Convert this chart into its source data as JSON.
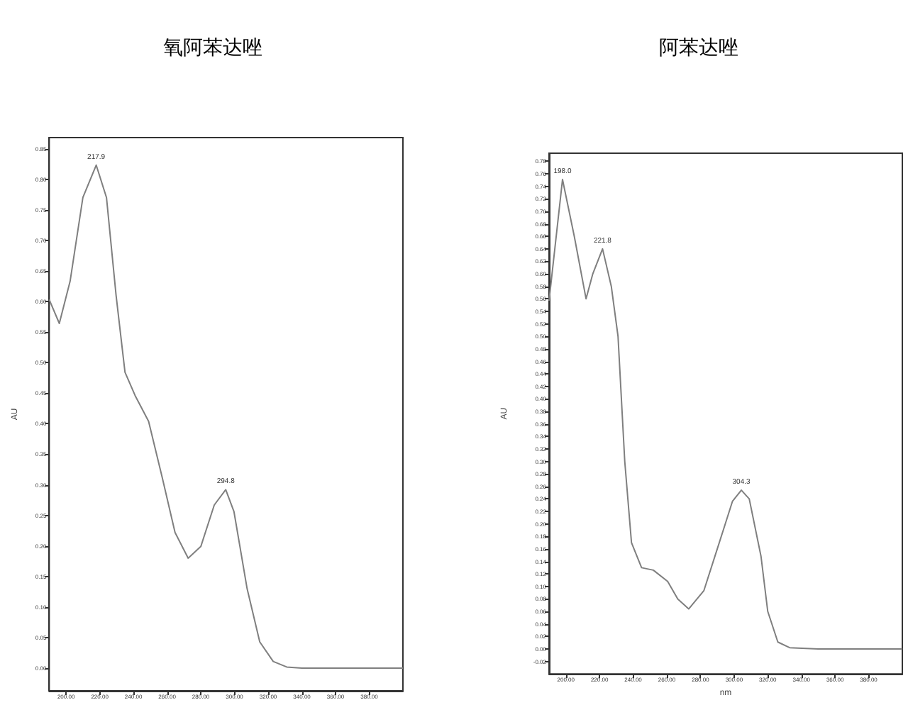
{
  "chart_data": [
    {
      "type": "line",
      "title": "氧阿苯达唑",
      "ylabel": "AU",
      "grid": false,
      "marker": "none",
      "line_style": "solid",
      "xlim": [
        190,
        400
      ],
      "ylim": [
        -0.037,
        0.868
      ],
      "xticks": [
        {
          "value": 200,
          "label": "200.00"
        },
        {
          "value": 220,
          "label": "220.00"
        },
        {
          "value": 240,
          "label": "240.00"
        },
        {
          "value": 260,
          "label": "260.00"
        },
        {
          "value": 280,
          "label": "280.00"
        },
        {
          "value": 300,
          "label": "300.00"
        },
        {
          "value": 320,
          "label": "320.00"
        },
        {
          "value": 340,
          "label": "340.00"
        },
        {
          "value": 360,
          "label": "360.00"
        },
        {
          "value": 380,
          "label": "380.00"
        }
      ],
      "yticks": [
        {
          "value": 0,
          "label": "0.00"
        },
        {
          "value": 0.05,
          "label": "0.05"
        },
        {
          "value": 0.1,
          "label": "0.10"
        },
        {
          "value": 0.15,
          "label": "0.15"
        },
        {
          "value": 0.2,
          "label": "0.20"
        },
        {
          "value": 0.25,
          "label": "0.25"
        },
        {
          "value": 0.3,
          "label": "0.30"
        },
        {
          "value": 0.35,
          "label": "0.35"
        },
        {
          "value": 0.4,
          "label": "0.40"
        },
        {
          "value": 0.45,
          "label": "0.45"
        },
        {
          "value": 0.5,
          "label": "0.50"
        },
        {
          "value": 0.55,
          "label": "0.55"
        },
        {
          "value": 0.6,
          "label": "0.60"
        },
        {
          "value": 0.65,
          "label": "0.65"
        },
        {
          "value": 0.7,
          "label": "0.70"
        },
        {
          "value": 0.75,
          "label": "0.75"
        },
        {
          "value": 0.8,
          "label": "0.80"
        },
        {
          "value": 0.85,
          "label": "0.85"
        }
      ],
      "x": [
        190,
        196,
        202.4,
        210,
        217.9,
        224,
        229.7,
        235,
        241,
        249,
        257,
        264.7,
        272.5,
        280,
        288,
        294.8,
        299.7,
        307.5,
        315,
        323,
        331,
        340,
        370,
        400
      ],
      "series": [
        {
          "color": "#7f7f7f",
          "values": [
            0.603,
            0.564,
            0.633,
            0.77,
            0.823,
            0.77,
            0.61,
            0.484,
            0.446,
            0.404,
            0.313,
            0.222,
            0.18,
            0.199,
            0.267,
            0.292,
            0.256,
            0.13,
            0.043,
            0.011,
            0.002,
            0,
            0,
            0
          ]
        }
      ],
      "annotations": [
        {
          "text": "217.9",
          "x": 217.9,
          "y": 0.823
        },
        {
          "text": "294.8",
          "x": 294.8,
          "y": 0.292
        }
      ]
    },
    {
      "type": "line",
      "title": "阿苯达唑",
      "xlabel": "nm",
      "ylabel": "AU",
      "grid": false,
      "marker": "none",
      "line_style": "solid",
      "xlim": [
        190,
        400
      ],
      "ylim": [
        -0.04,
        0.793
      ],
      "xticks": [
        {
          "value": 200,
          "label": "200.00"
        },
        {
          "value": 220,
          "label": "220.00"
        },
        {
          "value": 240,
          "label": "240.00"
        },
        {
          "value": 260,
          "label": "260.00"
        },
        {
          "value": 280,
          "label": "280.00"
        },
        {
          "value": 300,
          "label": "300.00"
        },
        {
          "value": 320,
          "label": "320.00"
        },
        {
          "value": 340,
          "label": "340.00"
        },
        {
          "value": 360,
          "label": "360.00"
        },
        {
          "value": 380,
          "label": "380.00"
        }
      ],
      "yticks": [
        {
          "value": -0.02,
          "label": "-0.02"
        },
        {
          "value": 0,
          "label": "0.00"
        },
        {
          "value": 0.02,
          "label": "0.02"
        },
        {
          "value": 0.04,
          "label": "0.04"
        },
        {
          "value": 0.06,
          "label": "0.06"
        },
        {
          "value": 0.08,
          "label": "0.08"
        },
        {
          "value": 0.1,
          "label": "0.10"
        },
        {
          "value": 0.12,
          "label": "0.12"
        },
        {
          "value": 0.14,
          "label": "0.14"
        },
        {
          "value": 0.16,
          "label": "0.16"
        },
        {
          "value": 0.18,
          "label": "0.18"
        },
        {
          "value": 0.2,
          "label": "0.20"
        },
        {
          "value": 0.22,
          "label": "0.22"
        },
        {
          "value": 0.24,
          "label": "0.24"
        },
        {
          "value": 0.26,
          "label": "0.26"
        },
        {
          "value": 0.28,
          "label": "0.28"
        },
        {
          "value": 0.3,
          "label": "0.30"
        },
        {
          "value": 0.32,
          "label": "0.32"
        },
        {
          "value": 0.34,
          "label": "0.34"
        },
        {
          "value": 0.36,
          "label": "0.36"
        },
        {
          "value": 0.38,
          "label": "0.38"
        },
        {
          "value": 0.4,
          "label": "0.40"
        },
        {
          "value": 0.42,
          "label": "0.42"
        },
        {
          "value": 0.44,
          "label": "0.44"
        },
        {
          "value": 0.46,
          "label": "0.46"
        },
        {
          "value": 0.48,
          "label": "0.48"
        },
        {
          "value": 0.5,
          "label": "0.50"
        },
        {
          "value": 0.52,
          "label": "0.52"
        },
        {
          "value": 0.54,
          "label": "0.54"
        },
        {
          "value": 0.56,
          "label": "0.56"
        },
        {
          "value": 0.58,
          "label": "0.58"
        },
        {
          "value": 0.6,
          "label": "0.60"
        },
        {
          "value": 0.62,
          "label": "0.62"
        },
        {
          "value": 0.64,
          "label": "0.64"
        },
        {
          "value": 0.66,
          "label": "0.66"
        },
        {
          "value": 0.68,
          "label": "0.68"
        },
        {
          "value": 0.7,
          "label": "0.70"
        },
        {
          "value": 0.72,
          "label": "0.72"
        },
        {
          "value": 0.74,
          "label": "0.74"
        },
        {
          "value": 0.76,
          "label": "0.76"
        },
        {
          "value": 0.78,
          "label": "0.78"
        }
      ],
      "x": [
        190,
        198,
        205,
        212,
        216,
        221.8,
        227,
        231,
        235,
        239,
        245,
        252,
        260.5,
        266.5,
        273,
        282,
        290,
        299,
        304.3,
        309,
        316,
        320,
        326,
        333,
        350,
        400
      ],
      "series": [
        {
          "color": "#7f7f7f",
          "values": [
            0.557,
            0.751,
            0.66,
            0.56,
            0.6,
            0.64,
            0.58,
            0.5,
            0.3,
            0.17,
            0.13,
            0.126,
            0.108,
            0.08,
            0.064,
            0.093,
            0.16,
            0.236,
            0.254,
            0.24,
            0.148,
            0.06,
            0.011,
            0.002,
            0,
            0
          ]
        }
      ],
      "annotations": [
        {
          "text": "198.0",
          "x": 198,
          "y": 0.751
        },
        {
          "text": "221.8",
          "x": 221.8,
          "y": 0.64
        },
        {
          "text": "304.3",
          "x": 304.3,
          "y": 0.254
        }
      ]
    }
  ]
}
